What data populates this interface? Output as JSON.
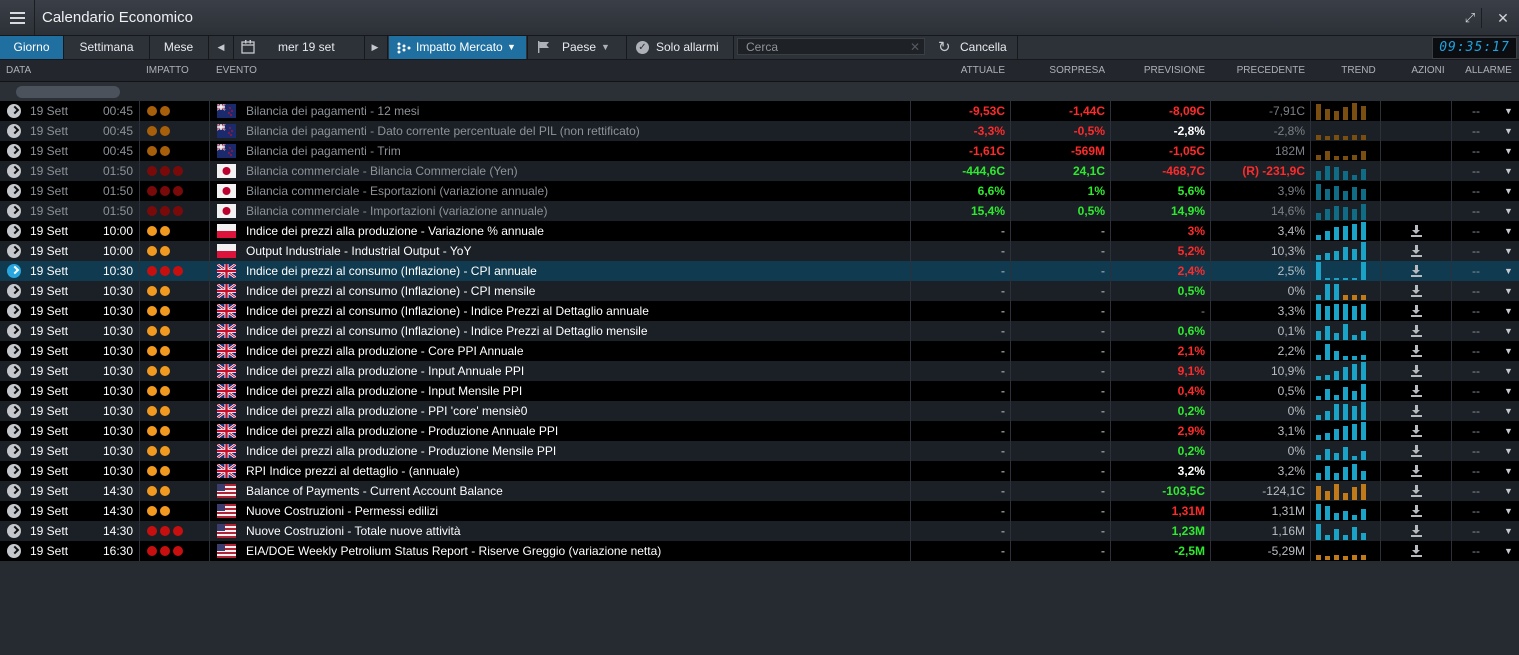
{
  "window": {
    "title": "Calendario Economico"
  },
  "toolbar": {
    "tabs": [
      "Giorno",
      "Settimana",
      "Mese"
    ],
    "date": "mer 19 set",
    "impact_label": "Impatto Mercato",
    "country_label": "Paese",
    "alarms_label": "Solo allarmi",
    "search_placeholder": "Cerca",
    "clear_label": "Cancella",
    "clock": "09:35:17"
  },
  "columns": {
    "data": "DATA",
    "impatto": "IMPATTO",
    "evento": "EVENTO",
    "attuale": "ATTUALE",
    "sorpresa": "SORPRESA",
    "previsione": "PREVISIONE",
    "precedente": "PRECEDENTE",
    "trend": "TREND",
    "azioni": "AZIONI",
    "allarme": "ALLARME"
  },
  "colors": {
    "red": "#ff2a2a",
    "green": "#2dea2d",
    "orange": "#f29a1f",
    "darkred": "#c80f0f",
    "cyan": "#1aa3c6",
    "brown": "#c07a1a",
    "selected": "#0f3a4f"
  },
  "rows": [
    {
      "date": "19 Sett",
      "time": "00:45",
      "impact": 2,
      "impact_color": "dim-orange",
      "flag": "new-zealand",
      "event": "Bilancia dei pagamenti - 12 mesi",
      "actual": "-9,53C",
      "actual_c": "red",
      "surprise": "-1,44C",
      "surprise_c": "red",
      "forecast": "-8,09C",
      "forecast_c": "red",
      "previous": "-7,91C",
      "trend": [
        0.9,
        0.6,
        0.5,
        0.7,
        0.95,
        0.8
      ],
      "trend_c": "brown",
      "past": true,
      "download": false,
      "alarm": "--"
    },
    {
      "date": "19 Sett",
      "time": "00:45",
      "impact": 2,
      "impact_color": "dim-orange",
      "flag": "new-zealand",
      "event": "Bilancia dei pagamenti - Dato corrente percentuale del PIL (non rettificato)",
      "actual": "-3,3%",
      "actual_c": "red",
      "surprise": "-0,5%",
      "surprise_c": "red",
      "forecast": "-2,8%",
      "forecast_c": "white",
      "previous": "-2,8%",
      "trend": [
        0.3,
        0.2,
        0.25,
        0.2,
        0.3,
        0.3
      ],
      "trend_c": "brown",
      "past": true,
      "download": false,
      "alarm": "--"
    },
    {
      "date": "19 Sett",
      "time": "00:45",
      "impact": 2,
      "impact_color": "dim-orange",
      "flag": "new-zealand",
      "event": "Bilancia dei pagamenti - Trim",
      "actual": "-1,61C",
      "actual_c": "red",
      "surprise": "-569M",
      "surprise_c": "red",
      "forecast": "-1,05C",
      "forecast_c": "red",
      "previous": "182M",
      "trend": [
        0.3,
        0.5,
        0.2,
        0.2,
        0.3,
        0.5
      ],
      "trend_c": "brown",
      "past": true,
      "download": false,
      "alarm": "--"
    },
    {
      "date": "19 Sett",
      "time": "01:50",
      "impact": 3,
      "impact_color": "dim-red",
      "flag": "japan",
      "event": "Bilancia commerciale - Bilancia Commerciale (Yen)",
      "actual": "-444,6C",
      "actual_c": "green",
      "surprise": "24,1C",
      "surprise_c": "green",
      "forecast": "-468,7C",
      "forecast_c": "red",
      "previous": "(R) -231,9C",
      "previous_c": "red",
      "trend": [
        0.5,
        0.8,
        0.7,
        0.5,
        0.3,
        0.6
      ],
      "trend_c": "cyan",
      "past": true,
      "download": false,
      "alarm": "--"
    },
    {
      "date": "19 Sett",
      "time": "01:50",
      "impact": 3,
      "impact_color": "dim-red",
      "flag": "japan",
      "event": "Bilancia commerciale - Esportazioni (variazione annuale)",
      "actual": "6,6%",
      "actual_c": "green",
      "surprise": "1%",
      "surprise_c": "green",
      "forecast": "5,6%",
      "forecast_c": "green",
      "previous": "3,9%",
      "trend": [
        0.9,
        0.6,
        0.8,
        0.5,
        0.7,
        0.6
      ],
      "trend_c": "cyan",
      "past": true,
      "download": false,
      "alarm": "--"
    },
    {
      "date": "19 Sett",
      "time": "01:50",
      "impact": 3,
      "impact_color": "dim-red",
      "flag": "japan",
      "event": "Bilancia commerciale - Importazioni (variazione annuale)",
      "actual": "15,4%",
      "actual_c": "green",
      "surprise": "0,5%",
      "surprise_c": "green",
      "forecast": "14,9%",
      "forecast_c": "green",
      "previous": "14,6%",
      "trend": [
        0.4,
        0.6,
        0.8,
        0.7,
        0.6,
        0.9
      ],
      "trend_c": "cyan",
      "past": true,
      "download": false,
      "alarm": "--"
    },
    {
      "date": "19 Sett",
      "time": "10:00",
      "impact": 2,
      "impact_color": "orange",
      "flag": "poland",
      "event": "Indice dei prezzi alla produzione - Variazione % annuale",
      "actual": "-",
      "actual_c": "dim",
      "surprise": "-",
      "surprise_c": "dim",
      "forecast": "3%",
      "forecast_c": "red",
      "previous": "3,4%",
      "trend": [
        0.3,
        0.5,
        0.7,
        0.8,
        0.9,
        1.0
      ],
      "trend_c": "cyan",
      "past": false,
      "download": true,
      "alarm": "--"
    },
    {
      "date": "19 Sett",
      "time": "10:00",
      "impact": 2,
      "impact_color": "orange",
      "flag": "poland",
      "event": "Output Industriale - Industrial Output - YoY",
      "actual": "-",
      "actual_c": "dim",
      "surprise": "-",
      "surprise_c": "dim",
      "forecast": "5,2%",
      "forecast_c": "red",
      "previous": "10,3%",
      "trend": [
        0.3,
        0.4,
        0.5,
        0.7,
        0.6,
        1.0
      ],
      "trend_c": "cyan",
      "past": false,
      "download": true,
      "alarm": "--"
    },
    {
      "date": "19 Sett",
      "time": "10:30",
      "impact": 3,
      "impact_color": "red",
      "flag": "uk",
      "event": "Indice dei prezzi al consumo (Inflazione) - CPI annuale",
      "actual": "-",
      "actual_c": "dim",
      "surprise": "-",
      "surprise_c": "dim",
      "forecast": "2,4%",
      "forecast_c": "red",
      "previous": "2,5%",
      "trend": [
        1.0,
        0.1,
        0.1,
        0.1,
        0.1,
        1.0
      ],
      "trend_c": "cyan",
      "past": false,
      "download": true,
      "alarm": "--",
      "selected": true
    },
    {
      "date": "19 Sett",
      "time": "10:30",
      "impact": 2,
      "impact_color": "orange",
      "flag": "uk",
      "event": "Indice dei prezzi al consumo (Inflazione) - CPI mensile",
      "actual": "-",
      "actual_c": "dim",
      "surprise": "-",
      "surprise_c": "dim",
      "forecast": "0,5%",
      "forecast_c": "green",
      "previous": "0%",
      "trend": [
        0.3,
        0.9,
        0.9,
        0.3,
        0.3,
        0.3
      ],
      "trend_c": "mixed",
      "past": false,
      "download": true,
      "alarm": "--"
    },
    {
      "date": "19 Sett",
      "time": "10:30",
      "impact": 2,
      "impact_color": "orange",
      "flag": "uk",
      "event": "Indice dei prezzi al consumo (Inflazione) - Indice Prezzi al Dettaglio annuale",
      "actual": "-",
      "actual_c": "dim",
      "surprise": "-",
      "surprise_c": "dim",
      "forecast": "-",
      "forecast_c": "dim",
      "previous": "3,3%",
      "trend": [
        0.9,
        0.8,
        0.9,
        0.9,
        0.8,
        0.9
      ],
      "trend_c": "cyan",
      "past": false,
      "download": true,
      "alarm": "--"
    },
    {
      "date": "19 Sett",
      "time": "10:30",
      "impact": 2,
      "impact_color": "orange",
      "flag": "uk",
      "event": "Indice dei prezzi al consumo (Inflazione) - Indice Prezzi al Dettaglio mensile",
      "actual": "-",
      "actual_c": "dim",
      "surprise": "-",
      "surprise_c": "dim",
      "forecast": "0,6%",
      "forecast_c": "green",
      "previous": "0,1%",
      "trend": [
        0.5,
        0.8,
        0.4,
        0.9,
        0.3,
        0.5
      ],
      "trend_c": "cyan",
      "past": false,
      "download": true,
      "alarm": "--"
    },
    {
      "date": "19 Sett",
      "time": "10:30",
      "impact": 2,
      "impact_color": "orange",
      "flag": "uk",
      "event": "Indice dei prezzi alla produzione - Core PPI Annuale",
      "actual": "-",
      "actual_c": "dim",
      "surprise": "-",
      "surprise_c": "dim",
      "forecast": "2,1%",
      "forecast_c": "red",
      "previous": "2,2%",
      "trend": [
        0.3,
        0.9,
        0.5,
        0.2,
        0.2,
        0.3
      ],
      "trend_c": "cyan",
      "past": false,
      "download": true,
      "alarm": "--"
    },
    {
      "date": "19 Sett",
      "time": "10:30",
      "impact": 2,
      "impact_color": "orange",
      "flag": "uk",
      "event": "Indice dei prezzi alla produzione - Input Annuale PPI",
      "actual": "-",
      "actual_c": "dim",
      "surprise": "-",
      "surprise_c": "dim",
      "forecast": "9,1%",
      "forecast_c": "red",
      "previous": "10,9%",
      "trend": [
        0.2,
        0.3,
        0.5,
        0.7,
        0.9,
        1.0
      ],
      "trend_c": "cyan",
      "past": false,
      "download": true,
      "alarm": "--"
    },
    {
      "date": "19 Sett",
      "time": "10:30",
      "impact": 2,
      "impact_color": "orange",
      "flag": "uk",
      "event": "Indice dei prezzi alla produzione - Input Mensile PPI",
      "actual": "-",
      "actual_c": "dim",
      "surprise": "-",
      "surprise_c": "dim",
      "forecast": "0,4%",
      "forecast_c": "red",
      "previous": "0,5%",
      "trend": [
        0.2,
        0.6,
        0.3,
        0.7,
        0.5,
        0.9
      ],
      "trend_c": "cyan",
      "past": false,
      "download": true,
      "alarm": "--"
    },
    {
      "date": "19 Sett",
      "time": "10:30",
      "impact": 2,
      "impact_color": "orange",
      "flag": "uk",
      "event": "Indice dei prezzi alla produzione - PPI 'core' mensiè0",
      "actual": "-",
      "actual_c": "dim",
      "surprise": "-",
      "surprise_c": "dim",
      "forecast": "0,2%",
      "forecast_c": "green",
      "previous": "0%",
      "trend": [
        0.3,
        0.5,
        0.9,
        0.9,
        0.8,
        1.0
      ],
      "trend_c": "cyan",
      "past": false,
      "download": true,
      "alarm": "--"
    },
    {
      "date": "19 Sett",
      "time": "10:30",
      "impact": 2,
      "impact_color": "orange",
      "flag": "uk",
      "event": "Indice dei prezzi alla produzione - Produzione Annuale PPI",
      "actual": "-",
      "actual_c": "dim",
      "surprise": "-",
      "surprise_c": "dim",
      "forecast": "2,9%",
      "forecast_c": "red",
      "previous": "3,1%",
      "trend": [
        0.3,
        0.4,
        0.6,
        0.8,
        0.9,
        1.0
      ],
      "trend_c": "cyan",
      "past": false,
      "download": true,
      "alarm": "--"
    },
    {
      "date": "19 Sett",
      "time": "10:30",
      "impact": 2,
      "impact_color": "orange",
      "flag": "uk",
      "event": "Indice dei prezzi alla produzione - Produzione Mensile PPI",
      "actual": "-",
      "actual_c": "dim",
      "surprise": "-",
      "surprise_c": "dim",
      "forecast": "0,2%",
      "forecast_c": "green",
      "previous": "0%",
      "trend": [
        0.3,
        0.6,
        0.4,
        0.7,
        0.2,
        0.5
      ],
      "trend_c": "cyan",
      "past": false,
      "download": true,
      "alarm": "--"
    },
    {
      "date": "19 Sett",
      "time": "10:30",
      "impact": 2,
      "impact_color": "orange",
      "flag": "uk",
      "event": "RPI Indice prezzi al dettaglio - (annuale)",
      "actual": "-",
      "actual_c": "dim",
      "surprise": "-",
      "surprise_c": "dim",
      "forecast": "3,2%",
      "forecast_c": "white",
      "previous": "3,2%",
      "trend": [
        0.4,
        0.8,
        0.4,
        0.7,
        0.9,
        0.5
      ],
      "trend_c": "cyan",
      "past": false,
      "download": true,
      "alarm": "--"
    },
    {
      "date": "19 Sett",
      "time": "14:30",
      "impact": 2,
      "impact_color": "orange",
      "flag": "usa",
      "event": "Balance of Payments - Current Account Balance",
      "actual": "-",
      "actual_c": "dim",
      "surprise": "-",
      "surprise_c": "dim",
      "forecast": "-103,5C",
      "forecast_c": "green",
      "previous": "-124,1C",
      "trend": [
        0.8,
        0.5,
        0.9,
        0.4,
        0.7,
        0.9
      ],
      "trend_c": "brown",
      "past": false,
      "download": true,
      "alarm": "--"
    },
    {
      "date": "19 Sett",
      "time": "14:30",
      "impact": 2,
      "impact_color": "orange",
      "flag": "usa",
      "event": "Nuove Costruzioni - Permessi edilizi",
      "actual": "-",
      "actual_c": "dim",
      "surprise": "-",
      "surprise_c": "dim",
      "forecast": "1,31M",
      "forecast_c": "red",
      "previous": "1,31M",
      "trend": [
        0.9,
        0.8,
        0.4,
        0.5,
        0.3,
        0.6
      ],
      "trend_c": "cyan",
      "past": false,
      "download": true,
      "alarm": "--"
    },
    {
      "date": "19 Sett",
      "time": "14:30",
      "impact": 3,
      "impact_color": "red",
      "flag": "usa",
      "event": "Nuove Costruzioni - Totale nuove attività",
      "actual": "-",
      "actual_c": "dim",
      "surprise": "-",
      "surprise_c": "dim",
      "forecast": "1,23M",
      "forecast_c": "green",
      "previous": "1,16M",
      "trend": [
        0.9,
        0.3,
        0.6,
        0.3,
        0.7,
        0.4
      ],
      "trend_c": "cyan",
      "past": false,
      "download": true,
      "alarm": "--"
    },
    {
      "date": "19 Sett",
      "time": "16:30",
      "impact": 3,
      "impact_color": "red",
      "flag": "usa",
      "event": "EIA/DOE Weekly Petrolium Status Report - Riserve Greggio (variazione netta)",
      "actual": "-",
      "actual_c": "dim",
      "surprise": "-",
      "surprise_c": "dim",
      "forecast": "-2,5M",
      "forecast_c": "green",
      "previous": "-5,29M",
      "trend": [
        0.3,
        0.2,
        0.3,
        0.2,
        0.3,
        0.3
      ],
      "trend_c": "brown",
      "past": false,
      "download": true,
      "alarm": "--"
    }
  ]
}
